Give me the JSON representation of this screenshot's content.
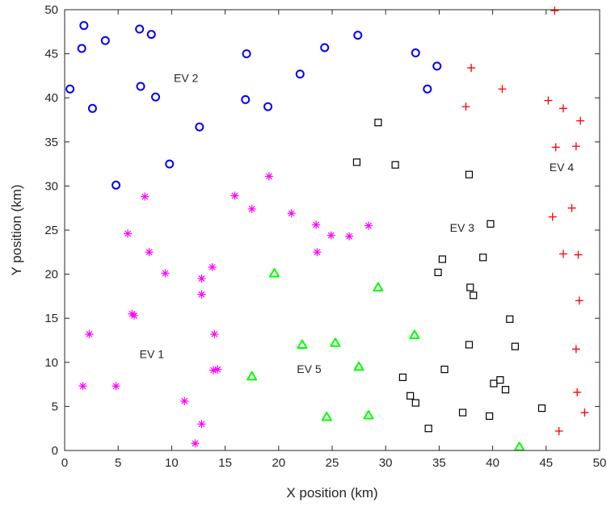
{
  "chart_data": {
    "type": "scatter",
    "xlabel": "X position (km)",
    "ylabel": "Y position (km)",
    "xlim": [
      0,
      50
    ],
    "ylim": [
      0,
      50
    ],
    "xticks": [
      0,
      5,
      10,
      15,
      20,
      25,
      30,
      35,
      40,
      45,
      50
    ],
    "yticks": [
      0,
      5,
      10,
      15,
      20,
      25,
      30,
      35,
      40,
      45,
      50
    ],
    "grid": false,
    "legend": "none",
    "annotations": [
      {
        "text": "EV 1",
        "x": 7.0,
        "y": 10.5
      },
      {
        "text": "EV 2",
        "x": 10.2,
        "y": 41.8
      },
      {
        "text": "EV 3",
        "x": 36.0,
        "y": 24.8
      },
      {
        "text": "EV 4",
        "x": 45.3,
        "y": 31.7
      },
      {
        "text": "EV 5",
        "x": 21.7,
        "y": 8.8
      }
    ],
    "series": [
      {
        "marker": "circle",
        "color": "#0000ff",
        "points": [
          [
            0.5,
            41.0
          ],
          [
            1.8,
            48.2
          ],
          [
            1.6,
            45.6
          ],
          [
            2.6,
            38.8
          ],
          [
            3.8,
            46.5
          ],
          [
            4.8,
            30.1
          ],
          [
            7.0,
            47.8
          ],
          [
            7.1,
            41.3
          ],
          [
            8.1,
            47.2
          ],
          [
            8.5,
            40.1
          ],
          [
            9.8,
            32.5
          ],
          [
            12.6,
            36.7
          ],
          [
            17.0,
            45.0
          ],
          [
            16.9,
            39.8
          ],
          [
            19.0,
            39.0
          ],
          [
            22.0,
            42.7
          ],
          [
            24.3,
            45.7
          ],
          [
            27.4,
            47.1
          ],
          [
            32.8,
            45.1
          ],
          [
            34.8,
            43.6
          ],
          [
            33.9,
            41.0
          ]
        ]
      },
      {
        "marker": "asterisk",
        "color": "#ff00ff",
        "points": [
          [
            2.3,
            13.2
          ],
          [
            1.7,
            7.3
          ],
          [
            4.8,
            7.3
          ],
          [
            5.9,
            24.6
          ],
          [
            6.3,
            15.5
          ],
          [
            6.5,
            15.3
          ],
          [
            7.5,
            28.8
          ],
          [
            7.9,
            22.5
          ],
          [
            9.4,
            20.1
          ],
          [
            11.2,
            5.6
          ],
          [
            12.2,
            0.8
          ],
          [
            12.8,
            19.5
          ],
          [
            12.8,
            17.7
          ],
          [
            12.8,
            3.0
          ],
          [
            13.8,
            20.8
          ],
          [
            14.0,
            13.2
          ],
          [
            13.9,
            9.1
          ],
          [
            14.3,
            9.2
          ],
          [
            15.9,
            28.9
          ],
          [
            17.5,
            27.4
          ],
          [
            19.1,
            31.1
          ],
          [
            21.2,
            26.9
          ],
          [
            23.5,
            25.6
          ],
          [
            23.6,
            22.5
          ],
          [
            24.9,
            24.4
          ],
          [
            26.6,
            24.3
          ],
          [
            28.4,
            25.5
          ]
        ]
      },
      {
        "marker": "square",
        "color": "#000000",
        "points": [
          [
            27.3,
            32.7
          ],
          [
            29.3,
            37.2
          ],
          [
            30.9,
            32.4
          ],
          [
            31.6,
            8.3
          ],
          [
            32.3,
            6.2
          ],
          [
            32.8,
            5.4
          ],
          [
            34.0,
            2.5
          ],
          [
            34.9,
            20.2
          ],
          [
            35.3,
            21.7
          ],
          [
            35.5,
            9.2
          ],
          [
            37.2,
            4.3
          ],
          [
            37.8,
            31.3
          ],
          [
            37.8,
            12.0
          ],
          [
            37.9,
            18.5
          ],
          [
            38.2,
            17.6
          ],
          [
            39.1,
            21.9
          ],
          [
            39.7,
            3.9
          ],
          [
            39.8,
            25.7
          ],
          [
            40.1,
            7.6
          ],
          [
            40.7,
            8.0
          ],
          [
            41.2,
            6.9
          ],
          [
            41.6,
            14.9
          ],
          [
            42.1,
            11.8
          ],
          [
            44.6,
            4.8
          ]
        ]
      },
      {
        "marker": "plus",
        "color": "#ff0000",
        "points": [
          [
            37.5,
            39.0
          ],
          [
            38.0,
            43.4
          ],
          [
            40.9,
            41.0
          ],
          [
            45.2,
            39.7
          ],
          [
            45.6,
            26.5
          ],
          [
            45.8,
            49.9
          ],
          [
            45.9,
            34.4
          ],
          [
            46.2,
            2.2
          ],
          [
            46.6,
            38.8
          ],
          [
            46.6,
            22.3
          ],
          [
            47.4,
            27.5
          ],
          [
            47.8,
            34.5
          ],
          [
            47.8,
            11.5
          ],
          [
            47.9,
            6.6
          ],
          [
            48.0,
            22.2
          ],
          [
            48.1,
            17.0
          ],
          [
            48.2,
            37.4
          ],
          [
            48.6,
            4.3
          ]
        ]
      },
      {
        "marker": "triangle",
        "color": "#00ff00",
        "points": [
          [
            17.5,
            8.4
          ],
          [
            19.6,
            20.1
          ],
          [
            22.2,
            12.0
          ],
          [
            24.5,
            3.8
          ],
          [
            25.3,
            12.2
          ],
          [
            27.5,
            9.5
          ],
          [
            28.4,
            4.0
          ],
          [
            29.3,
            18.5
          ],
          [
            32.7,
            13.1
          ],
          [
            42.5,
            0.4
          ]
        ]
      }
    ]
  }
}
